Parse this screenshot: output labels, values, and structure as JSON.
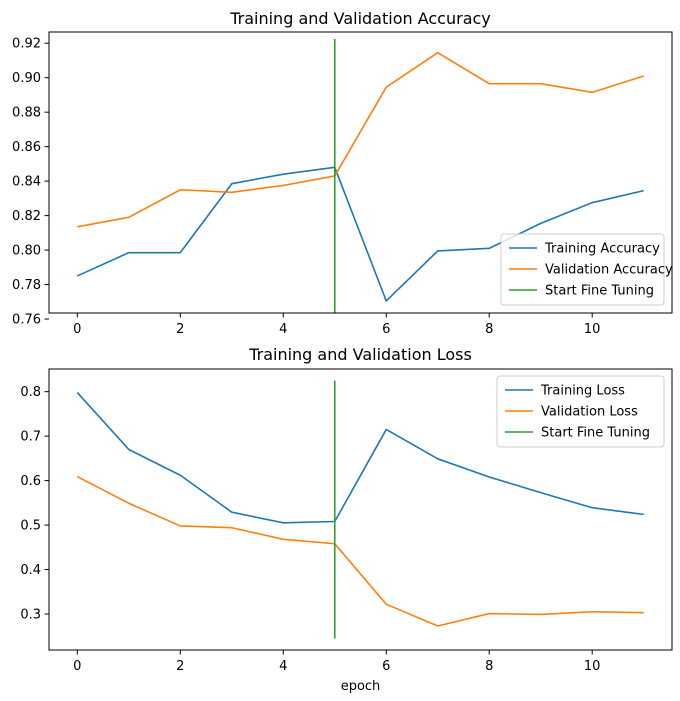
{
  "chart_data": [
    {
      "type": "line",
      "title": "Training and Validation Accuracy",
      "xlabel": "",
      "ylabel": "",
      "xlim": [
        -0.55,
        11.55
      ],
      "ylim": [
        0.7635,
        0.9265
      ],
      "xticks": [
        0,
        2,
        4,
        6,
        8,
        10
      ],
      "yticks": [
        0.76,
        0.78,
        0.8,
        0.82,
        0.84,
        0.86,
        0.88,
        0.9,
        0.92
      ],
      "ytick_labels": [
        "0.76",
        "0.78",
        "0.80",
        "0.82",
        "0.84",
        "0.86",
        "0.88",
        "0.90",
        "0.92"
      ],
      "x": [
        0,
        1,
        2,
        3,
        4,
        5,
        6,
        7,
        8,
        9,
        10,
        11
      ],
      "series": [
        {
          "name": "Training Accuracy",
          "color": "#1f77b4",
          "values": [
            0.785,
            0.7985,
            0.7985,
            0.8385,
            0.844,
            0.848,
            0.7705,
            0.7995,
            0.801,
            0.8155,
            0.8275,
            0.8345
          ]
        },
        {
          "name": "Validation Accuracy",
          "color": "#ff7f0e",
          "values": [
            0.8135,
            0.819,
            0.835,
            0.8335,
            0.8375,
            0.843,
            0.8945,
            0.9145,
            0.8965,
            0.8965,
            0.8915,
            0.901
          ]
        }
      ],
      "vline": {
        "name": "Start Fine Tuning",
        "color": "#2ca02c",
        "x": 5,
        "y": [
          0.7635,
          0.9225
        ]
      },
      "legend": "lower right",
      "grid": false
    },
    {
      "type": "line",
      "title": "Training and Validation Loss",
      "xlabel": "epoch",
      "ylabel": "",
      "xlim": [
        -0.55,
        11.55
      ],
      "ylim": [
        0.219,
        0.851
      ],
      "xticks": [
        0,
        2,
        4,
        6,
        8,
        10
      ],
      "yticks": [
        0.3,
        0.4,
        0.5,
        0.6,
        0.7,
        0.8
      ],
      "ytick_labels": [
        "0.3",
        "0.4",
        "0.5",
        "0.6",
        "0.7",
        "0.8"
      ],
      "x": [
        0,
        1,
        2,
        3,
        4,
        5,
        6,
        7,
        8,
        9,
        10,
        11
      ],
      "series": [
        {
          "name": "Training Loss",
          "color": "#1f77b4",
          "values": [
            0.798,
            0.67,
            0.612,
            0.529,
            0.505,
            0.508,
            0.715,
            0.649,
            0.608,
            0.573,
            0.539,
            0.524
          ]
        },
        {
          "name": "Validation Loss",
          "color": "#ff7f0e",
          "values": [
            0.609,
            0.549,
            0.498,
            0.494,
            0.468,
            0.458,
            0.322,
            0.273,
            0.301,
            0.299,
            0.305,
            0.303
          ]
        }
      ],
      "vline": {
        "name": "Start Fine Tuning",
        "color": "#2ca02c",
        "x": 5,
        "y": [
          0.2445,
          0.825
        ]
      },
      "legend": "upper right",
      "grid": false
    }
  ]
}
